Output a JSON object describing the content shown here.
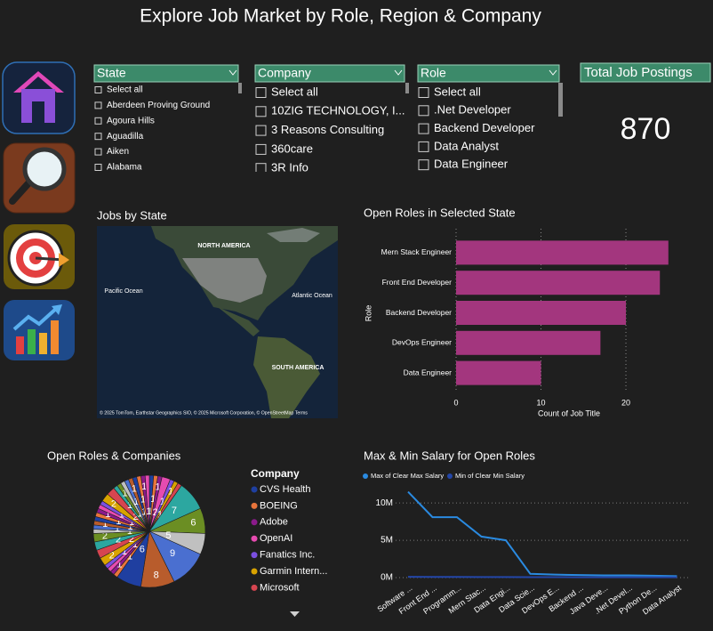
{
  "header": {
    "title": "Explore Job Market by Role, Region & Company"
  },
  "slicers": [
    {
      "title": "State",
      "items": [
        "Select all",
        "Aberdeen Proving Ground",
        "Agoura Hills",
        "Aguadilla",
        "Aiken",
        "Alabama"
      ]
    },
    {
      "title": "Company",
      "items": [
        "Select all",
        "10ZIG TECHNOLOGY, I...",
        "3 Reasons Consulting",
        "360care",
        "3R Info"
      ]
    },
    {
      "title": "Role",
      "items": [
        "Select all",
        ".Net Developer",
        "Backend Developer",
        "Data Analyst",
        "Data Engineer"
      ]
    }
  ],
  "card": {
    "title": "Total Job Postings",
    "value": 870
  },
  "map": {
    "title": "Jobs by State",
    "labels": [
      "NORTH AMERICA",
      "SOUTH AMERICA",
      "Pacific Ocean",
      "Atlantic Ocean"
    ],
    "attribution": "© 2025 TomTom, Earthstar Geographics SIO, © 2025 Microsoft Corporation, © OpenStreetMap  Terms"
  },
  "chart_data": [
    {
      "type": "bar",
      "title": "Open Roles in Selected State",
      "y_label": "Role",
      "x_label": "Count of Job Title",
      "categories": [
        "Mern Stack Engineer",
        "Front End Developer",
        "Backend Developer",
        "DevOps Engineer",
        "Data Engineer"
      ],
      "values": [
        25,
        24,
        20,
        17,
        10
      ],
      "color": "#a3367e",
      "xlim": [
        0,
        29
      ],
      "xticks": [
        0,
        10,
        20
      ],
      "grid": true
    },
    {
      "type": "pie",
      "title": "Open Roles & Companies",
      "legend_title": "Company",
      "categories": [
        "CVS Health",
        "BOEING",
        "Adobe",
        "OpenAI",
        "Fanatics Inc.",
        "Garmin Intern...",
        "Microsoft",
        null,
        null,
        null,
        null,
        null,
        null,
        null,
        null,
        null,
        null,
        null,
        null,
        null,
        null,
        null,
        null,
        null,
        null,
        null,
        null,
        null,
        null,
        null,
        null,
        null,
        null,
        null,
        null,
        null,
        null,
        null,
        null,
        null
      ],
      "values": [
        1,
        1,
        1,
        2,
        1,
        1,
        1,
        7,
        6,
        5,
        9,
        8,
        6,
        1,
        1,
        1,
        1,
        2,
        2,
        2,
        2,
        1,
        1,
        1,
        1,
        1,
        1,
        1,
        1,
        2,
        2,
        1,
        1,
        1,
        1,
        1,
        1,
        1,
        1,
        1
      ],
      "colors": [
        "#1f3fa0",
        "#e8743b",
        "#8b1a8b",
        "#e64bb0",
        "#7b4fe0",
        "#d9a300",
        "#d64550",
        "#2ca7a0",
        "#6b8e23",
        "#c0c0c0",
        "#4a6fd0",
        "#b85c2c"
      ]
    },
    {
      "type": "line",
      "title": "Max & Min Salary for Open Roles",
      "categories": [
        "Software ...",
        "Front End ...",
        "Programm...",
        "Mern Stac...",
        "Data Engi...",
        "Data Scie...",
        "DevOps E...",
        "Backend ...",
        "Java Deve...",
        ".Net Devel...",
        "Python De...",
        "Data Analyst"
      ],
      "series": [
        {
          "name": "Max of Clear Max Salary",
          "color": "#2a8ae0",
          "values": [
            11500000,
            8100000,
            8100000,
            5500000,
            5000000,
            500000,
            400000,
            350000,
            300000,
            300000,
            250000,
            200000
          ]
        },
        {
          "name": "Min of Clear Min Salary",
          "color": "#2346a8",
          "values": [
            100000,
            90000,
            90000,
            80000,
            80000,
            60000,
            60000,
            50000,
            50000,
            50000,
            40000,
            40000
          ]
        }
      ],
      "ylim": [
        0,
        13000000
      ],
      "yticks": [
        {
          "value": 0,
          "label": "0M"
        },
        {
          "value": 5000000,
          "label": "5M"
        },
        {
          "value": 10000000,
          "label": "10M"
        }
      ],
      "grid": true
    }
  ]
}
